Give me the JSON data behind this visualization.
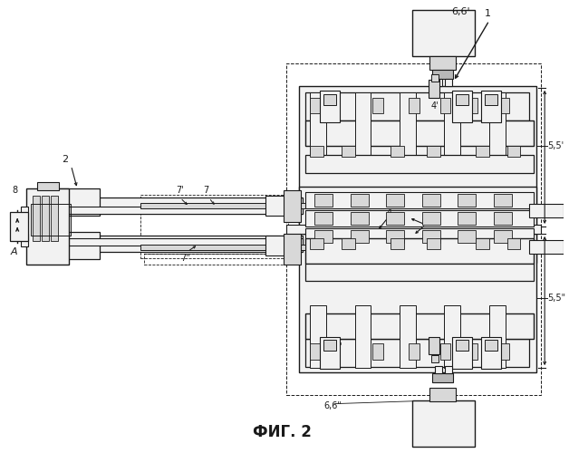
{
  "title": "ФИГ. 2",
  "background_color": "#ffffff",
  "line_color": "#1a1a1a",
  "fig_width": 6.28,
  "fig_height": 5.0,
  "dpi": 100
}
